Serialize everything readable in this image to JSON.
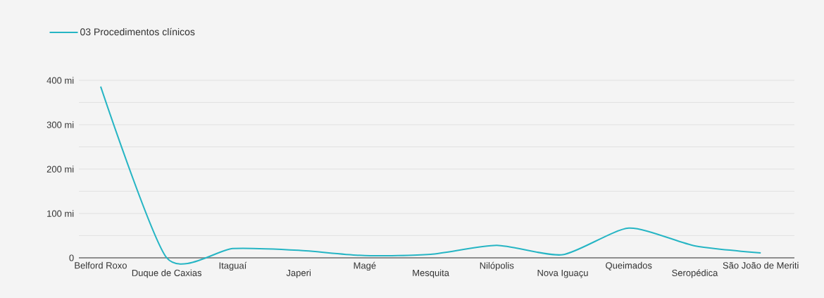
{
  "chart_data": {
    "type": "line",
    "categories": [
      "Belford Roxo",
      "Duque de Caxias",
      "Itaguaí",
      "Japeri",
      "Magé",
      "Mesquita",
      "Nilópolis",
      "Nova Iguaçu",
      "Queimados",
      "Seropédica",
      "São João de Meriti"
    ],
    "series": [
      {
        "name": "03 Procedimentos clínicos",
        "color": "#26b5c4",
        "values": [
          386,
          0,
          21,
          17,
          5,
          8,
          28,
          7,
          67,
          27,
          11
        ]
      }
    ],
    "ylim": [
      0,
      400
    ],
    "yticks": [
      0,
      {
        "value": 50,
        "label": null
      },
      {
        "value": 100,
        "label": "100 mi"
      },
      {
        "value": 150,
        "label": null
      },
      {
        "value": 200,
        "label": "200 mi"
      },
      {
        "value": 250,
        "label": null
      },
      {
        "value": 300,
        "label": "300 mi"
      },
      {
        "value": 350,
        "label": null
      },
      {
        "value": 400,
        "label": "400 mi"
      }
    ],
    "grid": "y",
    "legend": "top left"
  }
}
